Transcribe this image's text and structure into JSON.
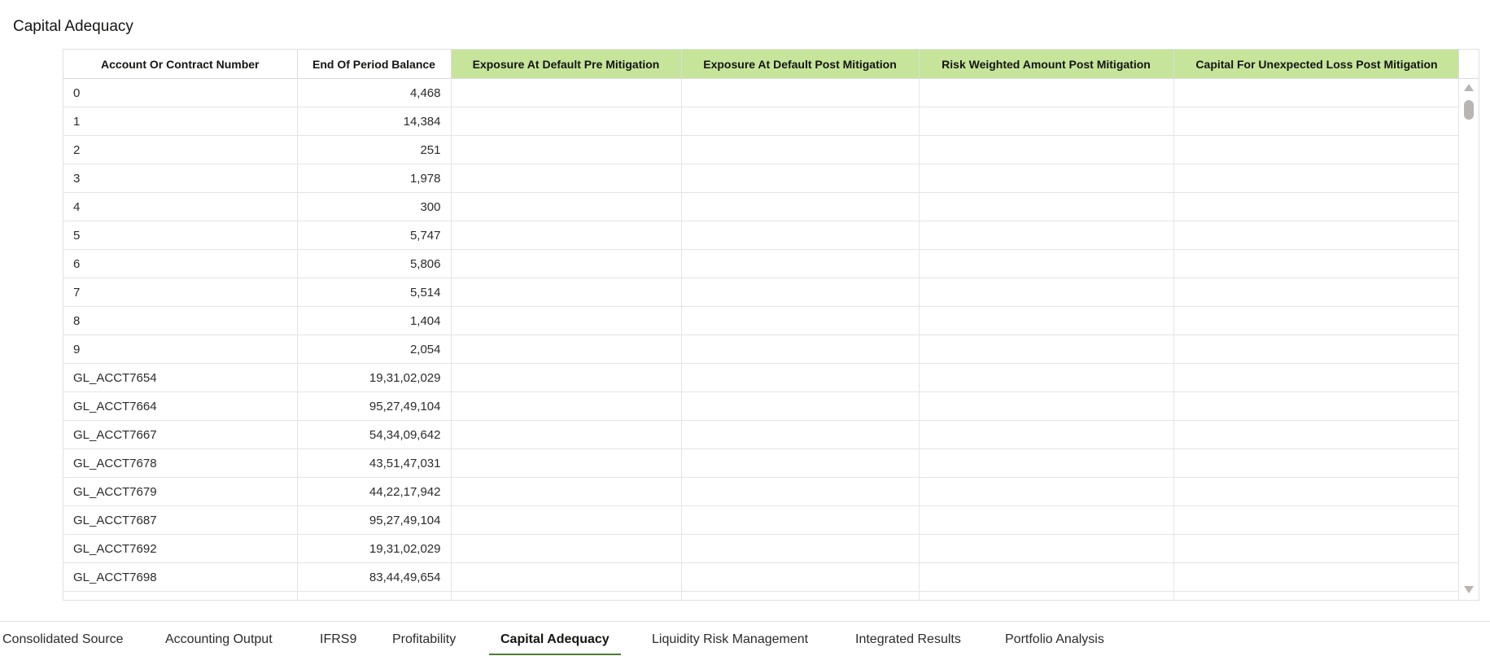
{
  "title": "Capital Adequacy",
  "table": {
    "columns": [
      {
        "label": "Account Or Contract Number",
        "highlight": false
      },
      {
        "label": "End Of Period Balance",
        "highlight": false
      },
      {
        "label": "Exposure At Default Pre Mitigation",
        "highlight": true
      },
      {
        "label": "Exposure At Default Post Mitigation",
        "highlight": true
      },
      {
        "label": "Risk Weighted Amount Post Mitigation",
        "highlight": true
      },
      {
        "label": "Capital For Unexpected Loss Post Mitigation",
        "highlight": true
      }
    ],
    "header_highlight_color": "#c6e59b",
    "rows": [
      [
        "0",
        "4,468"
      ],
      [
        "1",
        "14,384"
      ],
      [
        "2",
        "251"
      ],
      [
        "3",
        "1,978"
      ],
      [
        "4",
        "300"
      ],
      [
        "5",
        "5,747"
      ],
      [
        "6",
        "5,806"
      ],
      [
        "7",
        "5,514"
      ],
      [
        "8",
        "1,404"
      ],
      [
        "9",
        "2,054"
      ],
      [
        "GL_ACCT7654",
        "19,31,02,029"
      ],
      [
        "GL_ACCT7664",
        "95,27,49,104"
      ],
      [
        "GL_ACCT7667",
        "54,34,09,642"
      ],
      [
        "GL_ACCT7678",
        "43,51,47,031"
      ],
      [
        "GL_ACCT7679",
        "44,22,17,942"
      ],
      [
        "GL_ACCT7687",
        "95,27,49,104"
      ],
      [
        "GL_ACCT7692",
        "19,31,02,029"
      ],
      [
        "GL_ACCT7698",
        "83,44,49,654"
      ],
      [
        "",
        ""
      ]
    ]
  },
  "tabs": [
    {
      "label": "Consolidated Source",
      "active": false
    },
    {
      "label": "Accounting Output",
      "active": false
    },
    {
      "label": "IFRS9",
      "active": false
    },
    {
      "label": "Profitability",
      "active": false
    },
    {
      "label": "Capital Adequacy",
      "active": true
    },
    {
      "label": "Liquidity Risk Management",
      "active": false
    },
    {
      "label": "Integrated Results",
      "active": false
    },
    {
      "label": "Portfolio Analysis",
      "active": false
    }
  ]
}
